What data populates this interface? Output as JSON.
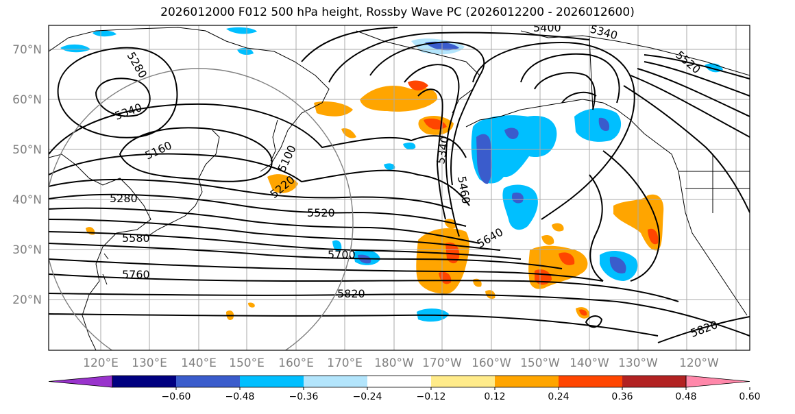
{
  "title": "2026012000 F012 500 hPa height, Rossby Wave PC (2026012200 - 2026012600)",
  "lon_labels": [
    "120°E",
    "130°E",
    "140°E",
    "150°E",
    "160°E",
    "170°E",
    "180°W",
    "170°W",
    "160°W",
    "150°W",
    "140°W",
    "130°W",
    "120°W"
  ],
  "lat_labels": [
    "70°N",
    "60°N",
    "50°N",
    "40°N",
    "30°N",
    "20°N"
  ],
  "contour_labels": [
    "5280",
    "5340",
    "5160",
    "5280",
    "5580",
    "5760",
    "5100",
    "5220",
    "5520",
    "5700",
    "5820",
    "5340",
    "5460",
    "5640",
    "5400",
    "5340",
    "5820",
    "5520"
  ],
  "colorbar": {
    "ticks": [
      "−0.60",
      "−0.48",
      "−0.36",
      "−0.24",
      "−0.12",
      "0.12",
      "0.24",
      "0.36",
      "0.48",
      "0.60"
    ],
    "colors": [
      "#9933cc",
      "#000080",
      "#3a5ccc",
      "#00bfff",
      "#b3e5fc",
      "#ffffff",
      "#ffeb8a",
      "#ffa500",
      "#ff4500",
      "#b22222",
      "#ff88aa"
    ]
  }
}
